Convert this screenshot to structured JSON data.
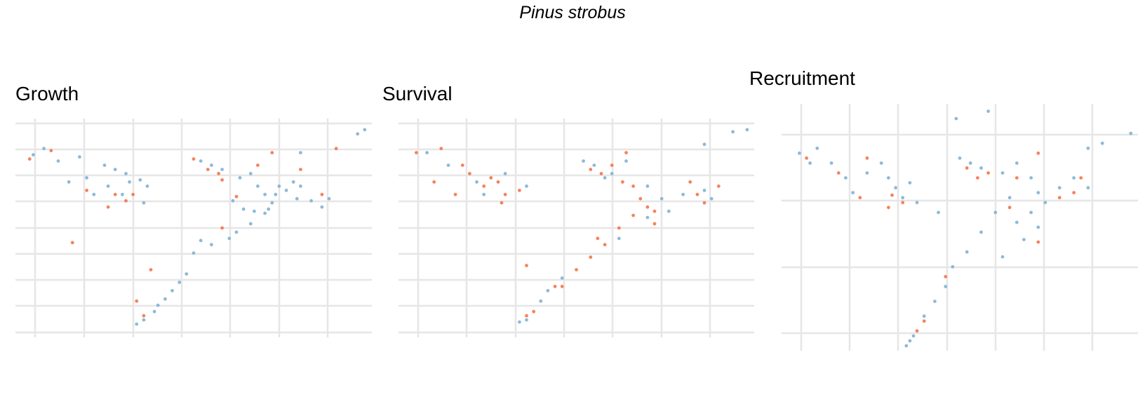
{
  "figure": {
    "title": "Pinus strobus"
  },
  "colors": {
    "blue": "#7fb2d5",
    "orange": "#f4744a",
    "grid": "#e6e6e6"
  },
  "chart_data": [
    {
      "type": "scatter",
      "title": "Growth",
      "grid": true,
      "legend": "none",
      "xlim": [
        0,
        1
      ],
      "ylim": [
        0,
        1
      ],
      "series": [
        {
          "color": "blue",
          "points": [
            [
              0.05,
              0.85
            ],
            [
              0.08,
              0.88
            ],
            [
              0.12,
              0.82
            ],
            [
              0.18,
              0.84
            ],
            [
              0.25,
              0.8
            ],
            [
              0.28,
              0.78
            ],
            [
              0.31,
              0.76
            ],
            [
              0.32,
              0.72
            ],
            [
              0.3,
              0.66
            ],
            [
              0.26,
              0.7
            ],
            [
              0.22,
              0.66
            ],
            [
              0.35,
              0.73
            ],
            [
              0.37,
              0.7
            ],
            [
              0.36,
              0.62
            ],
            [
              0.52,
              0.82
            ],
            [
              0.55,
              0.8
            ],
            [
              0.58,
              0.78
            ],
            [
              0.63,
              0.74
            ],
            [
              0.66,
              0.76
            ],
            [
              0.68,
              0.7
            ],
            [
              0.7,
              0.66
            ],
            [
              0.72,
              0.62
            ],
            [
              0.7,
              0.57
            ],
            [
              0.66,
              0.52
            ],
            [
              0.64,
              0.59
            ],
            [
              0.61,
              0.63
            ],
            [
              0.74,
              0.7
            ],
            [
              0.76,
              0.68
            ],
            [
              0.78,
              0.72
            ],
            [
              0.8,
              0.7
            ],
            [
              0.79,
              0.64
            ],
            [
              0.83,
              0.63
            ],
            [
              0.86,
              0.6
            ],
            [
              0.88,
              0.64
            ],
            [
              0.55,
              0.42
            ],
            [
              0.52,
              0.44
            ],
            [
              0.5,
              0.38
            ],
            [
              0.48,
              0.28
            ],
            [
              0.46,
              0.24
            ],
            [
              0.44,
              0.2
            ],
            [
              0.42,
              0.16
            ],
            [
              0.39,
              0.1
            ],
            [
              0.36,
              0.06
            ],
            [
              0.34,
              0.04
            ],
            [
              0.4,
              0.13
            ],
            [
              0.62,
              0.48
            ],
            [
              0.6,
              0.45
            ],
            [
              0.8,
              0.86
            ],
            [
              0.96,
              0.95
            ],
            [
              0.98,
              0.97
            ],
            [
              0.15,
              0.72
            ],
            [
              0.2,
              0.74
            ],
            [
              0.71,
              0.59
            ],
            [
              0.73,
              0.66
            ],
            [
              0.67,
              0.58
            ]
          ]
        },
        {
          "color": "orange",
          "points": [
            [
              0.04,
              0.83
            ],
            [
              0.1,
              0.87
            ],
            [
              0.2,
              0.68
            ],
            [
              0.28,
              0.66
            ],
            [
              0.31,
              0.63
            ],
            [
              0.33,
              0.66
            ],
            [
              0.5,
              0.83
            ],
            [
              0.54,
              0.78
            ],
            [
              0.57,
              0.76
            ],
            [
              0.58,
              0.73
            ],
            [
              0.62,
              0.65
            ],
            [
              0.68,
              0.8
            ],
            [
              0.72,
              0.86
            ],
            [
              0.8,
              0.78
            ],
            [
              0.86,
              0.66
            ],
            [
              0.16,
              0.43
            ],
            [
              0.38,
              0.3
            ],
            [
              0.34,
              0.15
            ],
            [
              0.36,
              0.08
            ],
            [
              0.58,
              0.5
            ],
            [
              0.9,
              0.88
            ],
            [
              0.26,
              0.6
            ]
          ]
        }
      ]
    },
    {
      "type": "scatter",
      "title": "Survival",
      "grid": true,
      "legend": "none",
      "xlim": [
        0,
        1
      ],
      "ylim": [
        0,
        1
      ],
      "series": [
        {
          "color": "blue",
          "points": [
            [
              0.08,
              0.86
            ],
            [
              0.14,
              0.8
            ],
            [
              0.22,
              0.72
            ],
            [
              0.3,
              0.76
            ],
            [
              0.36,
              0.7
            ],
            [
              0.52,
              0.82
            ],
            [
              0.55,
              0.8
            ],
            [
              0.6,
              0.76
            ],
            [
              0.64,
              0.82
            ],
            [
              0.7,
              0.7
            ],
            [
              0.74,
              0.64
            ],
            [
              0.76,
              0.58
            ],
            [
              0.7,
              0.55
            ],
            [
              0.8,
              0.66
            ],
            [
              0.86,
              0.68
            ],
            [
              0.88,
              0.64
            ],
            [
              0.42,
              0.2
            ],
            [
              0.4,
              0.15
            ],
            [
              0.36,
              0.06
            ],
            [
              0.34,
              0.05
            ],
            [
              0.46,
              0.26
            ],
            [
              0.62,
              0.45
            ],
            [
              0.86,
              0.9
            ],
            [
              0.94,
              0.96
            ],
            [
              0.98,
              0.97
            ],
            [
              0.24,
              0.66
            ],
            [
              0.58,
              0.74
            ]
          ]
        },
        {
          "color": "orange",
          "points": [
            [
              0.05,
              0.86
            ],
            [
              0.12,
              0.88
            ],
            [
              0.18,
              0.8
            ],
            [
              0.2,
              0.76
            ],
            [
              0.16,
              0.66
            ],
            [
              0.24,
              0.7
            ],
            [
              0.29,
              0.62
            ],
            [
              0.3,
              0.66
            ],
            [
              0.34,
              0.68
            ],
            [
              0.26,
              0.74
            ],
            [
              0.54,
              0.78
            ],
            [
              0.57,
              0.76
            ],
            [
              0.6,
              0.8
            ],
            [
              0.63,
              0.72
            ],
            [
              0.66,
              0.7
            ],
            [
              0.68,
              0.64
            ],
            [
              0.72,
              0.58
            ],
            [
              0.72,
              0.52
            ],
            [
              0.7,
              0.6
            ],
            [
              0.66,
              0.56
            ],
            [
              0.62,
              0.5
            ],
            [
              0.58,
              0.42
            ],
            [
              0.54,
              0.36
            ],
            [
              0.5,
              0.3
            ],
            [
              0.46,
              0.22
            ],
            [
              0.38,
              0.1
            ],
            [
              0.36,
              0.08
            ],
            [
              0.44,
              0.22
            ],
            [
              0.82,
              0.72
            ],
            [
              0.84,
              0.66
            ],
            [
              0.86,
              0.62
            ],
            [
              0.9,
              0.7
            ],
            [
              0.1,
              0.72
            ],
            [
              0.28,
              0.72
            ],
            [
              0.64,
              0.86
            ],
            [
              0.36,
              0.32
            ],
            [
              0.56,
              0.45
            ]
          ]
        }
      ]
    },
    {
      "type": "scatter",
      "title": "Recruitment",
      "grid": true,
      "legend": "none",
      "xlim": [
        0,
        1
      ],
      "ylim": [
        0,
        1
      ],
      "series": [
        {
          "color": "blue",
          "points": [
            [
              0.05,
              0.8
            ],
            [
              0.1,
              0.82
            ],
            [
              0.14,
              0.76
            ],
            [
              0.18,
              0.7
            ],
            [
              0.24,
              0.72
            ],
            [
              0.28,
              0.76
            ],
            [
              0.3,
              0.7
            ],
            [
              0.32,
              0.66
            ],
            [
              0.36,
              0.68
            ],
            [
              0.34,
              0.62
            ],
            [
              0.5,
              0.78
            ],
            [
              0.53,
              0.76
            ],
            [
              0.56,
              0.74
            ],
            [
              0.62,
              0.72
            ],
            [
              0.66,
              0.76
            ],
            [
              0.7,
              0.7
            ],
            [
              0.72,
              0.64
            ],
            [
              0.7,
              0.56
            ],
            [
              0.66,
              0.52
            ],
            [
              0.72,
              0.5
            ],
            [
              0.74,
              0.6
            ],
            [
              0.78,
              0.66
            ],
            [
              0.82,
              0.7
            ],
            [
              0.86,
              0.66
            ],
            [
              0.64,
              0.62
            ],
            [
              0.6,
              0.56
            ],
            [
              0.56,
              0.48
            ],
            [
              0.52,
              0.4
            ],
            [
              0.48,
              0.34
            ],
            [
              0.46,
              0.26
            ],
            [
              0.43,
              0.2
            ],
            [
              0.4,
              0.14
            ],
            [
              0.37,
              0.06
            ],
            [
              0.35,
              0.02
            ],
            [
              0.36,
              0.04
            ],
            [
              0.49,
              0.94
            ],
            [
              0.58,
              0.97
            ],
            [
              0.86,
              0.82
            ],
            [
              0.9,
              0.84
            ],
            [
              0.98,
              0.88
            ],
            [
              0.44,
              0.56
            ],
            [
              0.38,
              0.6
            ],
            [
              0.62,
              0.38
            ],
            [
              0.08,
              0.76
            ],
            [
              0.2,
              0.64
            ],
            [
              0.68,
              0.45
            ]
          ]
        },
        {
          "color": "orange",
          "points": [
            [
              0.07,
              0.78
            ],
            [
              0.16,
              0.72
            ],
            [
              0.22,
              0.62
            ],
            [
              0.31,
              0.63
            ],
            [
              0.34,
              0.6
            ],
            [
              0.24,
              0.78
            ],
            [
              0.52,
              0.74
            ],
            [
              0.55,
              0.7
            ],
            [
              0.58,
              0.72
            ],
            [
              0.66,
              0.7
            ],
            [
              0.72,
              0.8
            ],
            [
              0.78,
              0.62
            ],
            [
              0.82,
              0.64
            ],
            [
              0.84,
              0.7
            ],
            [
              0.46,
              0.3
            ],
            [
              0.4,
              0.12
            ],
            [
              0.38,
              0.08
            ],
            [
              0.72,
              0.44
            ],
            [
              0.3,
              0.58
            ],
            [
              0.64,
              0.58
            ]
          ]
        }
      ]
    }
  ]
}
